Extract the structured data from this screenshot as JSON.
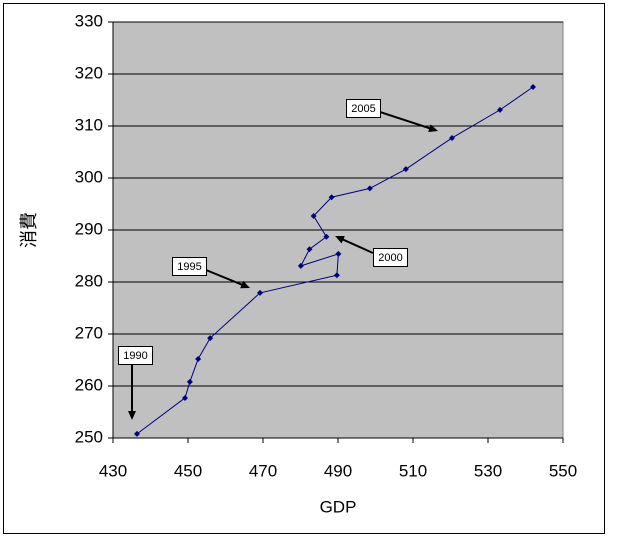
{
  "chart_data": {
    "type": "scatter",
    "x": [
      436.4,
      449.2,
      450.5,
      452.7,
      455.9,
      469.2,
      489.7,
      490.1,
      480.1,
      482.4,
      486.9,
      483.5,
      488.3,
      498.5,
      508.1,
      520.4,
      533.2,
      542.0
    ],
    "values": [
      250.8,
      257.7,
      260.8,
      265.2,
      269.2,
      277.9,
      281.3,
      285.4,
      283.1,
      286.3,
      288.7,
      292.7,
      296.3,
      298.0,
      301.7,
      307.7,
      313.1,
      317.5
    ],
    "color": "#000080",
    "x_label": "GDP",
    "y_label": "消費",
    "xlim": [
      430,
      550
    ],
    "xticks": [
      430,
      450,
      470,
      490,
      510,
      530,
      550
    ],
    "ylim": [
      250,
      330
    ],
    "yticks": [
      250,
      260,
      270,
      280,
      290,
      300,
      310,
      320,
      330
    ],
    "grid": true,
    "annotations": [
      "1990",
      "1995",
      "2000",
      "2005"
    ]
  }
}
